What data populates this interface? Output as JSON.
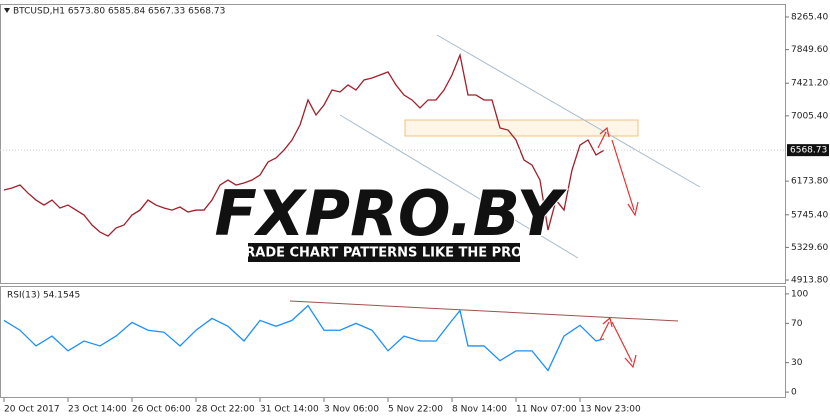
{
  "chart_data": [
    {
      "type": "line",
      "title": "BTCUSD,H1  6573.80 6585.84 6567.33 6568.73",
      "annotations": [
        "FXPRO.BY",
        "TRADE CHART PATTERNS LIKE THE PROS"
      ],
      "xlim": [
        -4,
        781
      ],
      "ylim": [
        4876,
        8418
      ],
      "yticks": [
        {
          "value": 8265.4,
          "label": "8265.40"
        },
        {
          "value": 7849.6,
          "label": "7849.60"
        },
        {
          "value": 7421.2,
          "label": "7421.20"
        },
        {
          "value": 7005.4,
          "label": "7005.40"
        },
        {
          "value": 6173.8,
          "label": "6173.80"
        },
        {
          "value": 5745.4,
          "label": "5745.40"
        },
        {
          "value": 5329.6,
          "label": "5329.60"
        },
        {
          "value": 4913.8,
          "label": "4913.80"
        }
      ],
      "series": [
        {
          "name": "BTCUSD",
          "color": "#a0202a",
          "x": [
            0,
            8,
            16,
            24,
            32,
            40,
            48,
            56,
            64,
            72,
            80,
            88,
            96,
            104,
            112,
            120,
            128,
            136,
            144,
            152,
            160,
            168,
            176,
            184,
            192,
            200,
            208,
            216,
            224,
            232,
            240,
            248,
            256,
            264,
            272,
            280,
            288,
            296,
            304,
            312,
            320,
            328,
            336,
            344,
            352,
            360,
            368,
            376,
            384,
            392,
            400,
            408,
            416,
            424,
            432,
            440,
            448,
            456,
            464,
            472,
            480,
            488,
            496,
            504,
            512,
            520,
            528,
            536,
            544,
            552,
            560,
            568,
            576,
            584,
            592,
            600
          ],
          "values": [
            6061,
            6086,
            6124,
            6022,
            5933,
            5869,
            5933,
            5831,
            5869,
            5805,
            5742,
            5615,
            5525,
            5474,
            5576,
            5615,
            5742,
            5805,
            5933,
            5869,
            5831,
            5805,
            5844,
            5780,
            5805,
            5805,
            5933,
            6124,
            6188,
            6124,
            6150,
            6188,
            6252,
            6418,
            6469,
            6570,
            6698,
            6889,
            7208,
            7017,
            7144,
            7335,
            7310,
            7399,
            7335,
            7463,
            7488,
            7526,
            7565,
            7399,
            7271,
            7208,
            7106,
            7208,
            7208,
            7335,
            7526,
            7781,
            7271,
            7271,
            7208,
            7208,
            6851,
            6825,
            6698,
            6443,
            6379,
            6188,
            5551,
            5933,
            5805,
            6315,
            6634,
            6698,
            6507,
            6568.73
          ]
        }
      ]
    },
    {
      "type": "line",
      "title": "RSI(13) 54.1545",
      "xlim": [
        -4,
        781
      ],
      "ylim": [
        -6,
        107
      ],
      "yticks": [
        100,
        70,
        30,
        0
      ],
      "xticks": [
        {
          "value": 0,
          "label": "20 Oct 2017"
        },
        {
          "value": 64,
          "label": "23 Oct 14:00"
        },
        {
          "value": 128,
          "label": "26 Oct 06:00"
        },
        {
          "value": 192,
          "label": "28 Oct 22:00"
        },
        {
          "value": 256,
          "label": "31 Oct 14:00"
        },
        {
          "value": 320,
          "label": "3 Nov 06:00"
        },
        {
          "value": 384,
          "label": "5 Nov 22:00"
        },
        {
          "value": 448,
          "label": "8 Nov 14:00"
        },
        {
          "value": 512,
          "label": "11 Nov 07:00"
        },
        {
          "value": 576,
          "label": "13 Nov 23:00"
        }
      ],
      "series": [
        {
          "name": "RSI",
          "color": "#1e8fff",
          "x": [
            0,
            16,
            32,
            48,
            64,
            80,
            96,
            112,
            128,
            144,
            160,
            176,
            192,
            208,
            224,
            240,
            256,
            272,
            288,
            304,
            320,
            336,
            352,
            368,
            384,
            400,
            416,
            432,
            448,
            456,
            464,
            480,
            496,
            512,
            528,
            544,
            560,
            576,
            592,
            600
          ],
          "values": [
            73,
            63,
            47,
            57,
            42,
            52,
            47,
            57,
            71,
            63,
            61,
            47,
            63,
            75,
            67,
            52,
            73,
            67,
            73,
            88,
            63,
            63,
            70,
            63,
            42,
            57,
            52,
            52,
            73,
            83,
            47,
            47,
            32,
            42,
            42,
            22,
            57,
            68,
            52,
            54.1545
          ]
        }
      ]
    }
  ]
}
